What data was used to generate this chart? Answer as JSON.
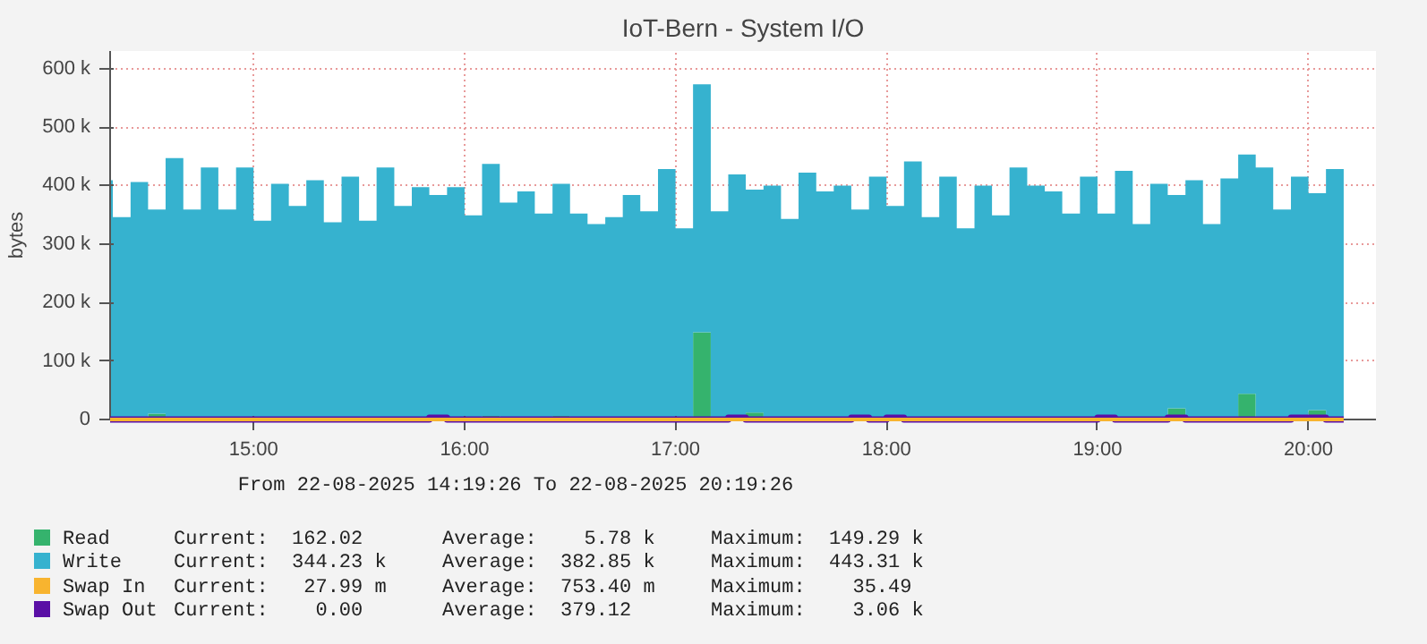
{
  "chart_data": {
    "type": "area",
    "stacked": true,
    "title": "IoT-Bern - System I/O",
    "ylabel": "bytes",
    "x": [
      14.32,
      14.333,
      14.417,
      14.5,
      14.583,
      14.667,
      14.75,
      14.833,
      14.917,
      15,
      15.083,
      15.167,
      15.25,
      15.333,
      15.417,
      15.5,
      15.583,
      15.667,
      15.75,
      15.833,
      15.917,
      16,
      16.083,
      16.167,
      16.25,
      16.333,
      16.417,
      16.5,
      16.583,
      16.667,
      16.75,
      16.833,
      16.917,
      17,
      17.083,
      17.167,
      17.25,
      17.333,
      17.417,
      17.5,
      17.583,
      17.667,
      17.75,
      17.833,
      17.917,
      18,
      18.083,
      18.167,
      18.25,
      18.333,
      18.417,
      18.5,
      18.583,
      18.667,
      18.75,
      18.833,
      18.917,
      19,
      19.083,
      19.167,
      19.25,
      19.333,
      19.417,
      19.5,
      19.583,
      19.667,
      19.75,
      19.833,
      19.917,
      20,
      20.083,
      20.167
    ],
    "series": [
      {
        "name": "Read",
        "color": "#35b36d",
        "values": [
          0,
          3000,
          0,
          10000,
          0,
          0,
          0,
          0,
          0,
          3000,
          0,
          0,
          3000,
          0,
          0,
          2000,
          0,
          2000,
          0,
          0,
          0,
          0,
          6000,
          0,
          0,
          0,
          6000,
          0,
          0,
          0,
          0,
          0,
          0,
          4000,
          149000,
          0,
          0,
          12000,
          0,
          0,
          0,
          3000,
          0,
          0,
          0,
          4000,
          0,
          0,
          0,
          0,
          0,
          0,
          0,
          0,
          0,
          0,
          0,
          0,
          0,
          0,
          0,
          19000,
          0,
          0,
          0,
          44000,
          0,
          0,
          0,
          16000,
          0,
          0
        ]
      },
      {
        "name": "Write",
        "color": "#36b2cf",
        "values": [
          409000,
          343000,
          406000,
          349000,
          447000,
          359000,
          431000,
          359000,
          431000,
          337000,
          403000,
          365000,
          406000,
          337000,
          415000,
          338000,
          431000,
          363000,
          397000,
          384000,
          397000,
          349000,
          431000,
          371000,
          390000,
          352000,
          397000,
          352000,
          334000,
          346000,
          384000,
          356000,
          428000,
          323000,
          424000,
          356000,
          419000,
          381000,
          400000,
          343000,
          422000,
          387000,
          400000,
          359000,
          415000,
          361000,
          441000,
          346000,
          415000,
          327000,
          400000,
          349000,
          431000,
          400000,
          390000,
          352000,
          415000,
          352000,
          425000,
          334000,
          403000,
          365000,
          409000,
          334000,
          412000,
          409000,
          431000,
          359000,
          415000,
          371000,
          428000,
          343000
        ]
      },
      {
        "name": "Swap In",
        "color": "#f8b42f",
        "type": "line",
        "values": [
          0,
          0,
          0,
          0,
          0,
          0,
          0,
          0,
          0,
          0,
          0,
          0,
          0,
          0,
          0,
          0,
          0,
          0,
          0,
          0,
          0,
          0,
          0,
          0,
          0,
          0,
          0,
          0,
          0,
          0,
          0,
          0,
          0,
          0,
          0,
          0,
          0,
          0,
          0,
          0,
          0,
          0,
          0,
          0,
          0,
          0,
          0,
          0,
          0,
          0,
          0,
          0,
          0,
          0,
          0,
          0,
          0,
          0,
          0,
          0,
          0,
          0,
          0,
          0,
          0,
          0,
          0,
          0,
          0,
          0,
          0,
          0
        ]
      },
      {
        "name": "Swap Out",
        "color": "#5a0fa5",
        "type": "line",
        "values": [
          0,
          0,
          0,
          0,
          0,
          0,
          0,
          0,
          0,
          0,
          0,
          0,
          0,
          0,
          0,
          0,
          0,
          0,
          0,
          3000,
          0,
          0,
          0,
          0,
          0,
          0,
          0,
          0,
          0,
          0,
          0,
          0,
          0,
          0,
          0,
          0,
          3000,
          0,
          0,
          0,
          0,
          0,
          0,
          3000,
          0,
          3000,
          0,
          0,
          0,
          0,
          0,
          0,
          0,
          0,
          0,
          0,
          0,
          3000,
          0,
          0,
          0,
          3000,
          0,
          0,
          0,
          0,
          0,
          0,
          3000,
          3000,
          0,
          0
        ]
      }
    ],
    "xlim": [
      14.32,
      20.32
    ],
    "ylim": [
      0,
      630000
    ],
    "xticks": [
      {
        "value": 15,
        "label": "15:00"
      },
      {
        "value": 16,
        "label": "16:00"
      },
      {
        "value": 17,
        "label": "17:00"
      },
      {
        "value": 18,
        "label": "18:00"
      },
      {
        "value": 19,
        "label": "19:00"
      },
      {
        "value": 20,
        "label": "20:00"
      }
    ],
    "yticks": [
      {
        "value": 0,
        "label": "0"
      },
      {
        "value": 100000,
        "label": "100 k"
      },
      {
        "value": 200000,
        "label": "200 k"
      },
      {
        "value": 300000,
        "label": "300 k"
      },
      {
        "value": 400000,
        "label": "400 k"
      },
      {
        "value": 500000,
        "label": "500 k"
      },
      {
        "value": 600000,
        "label": "600 k"
      }
    ],
    "grid": true,
    "legend": "bottom",
    "annotations": [
      "From 22-08-2025 14:19:26 To 22-08-2025 20:19:26",
      "Current:  162.02",
      "Average:    5.78 k",
      "Maximum:  149.29 k",
      "Current:  344.23 k",
      "Average:  382.85 k",
      "Maximum:  443.31 k",
      "Current:   27.99 m",
      "Average:  753.40 m",
      "Maximum:    35.49",
      "Current:    0.00",
      "Average:  379.12",
      "Maximum:    3.06 k"
    ]
  }
}
